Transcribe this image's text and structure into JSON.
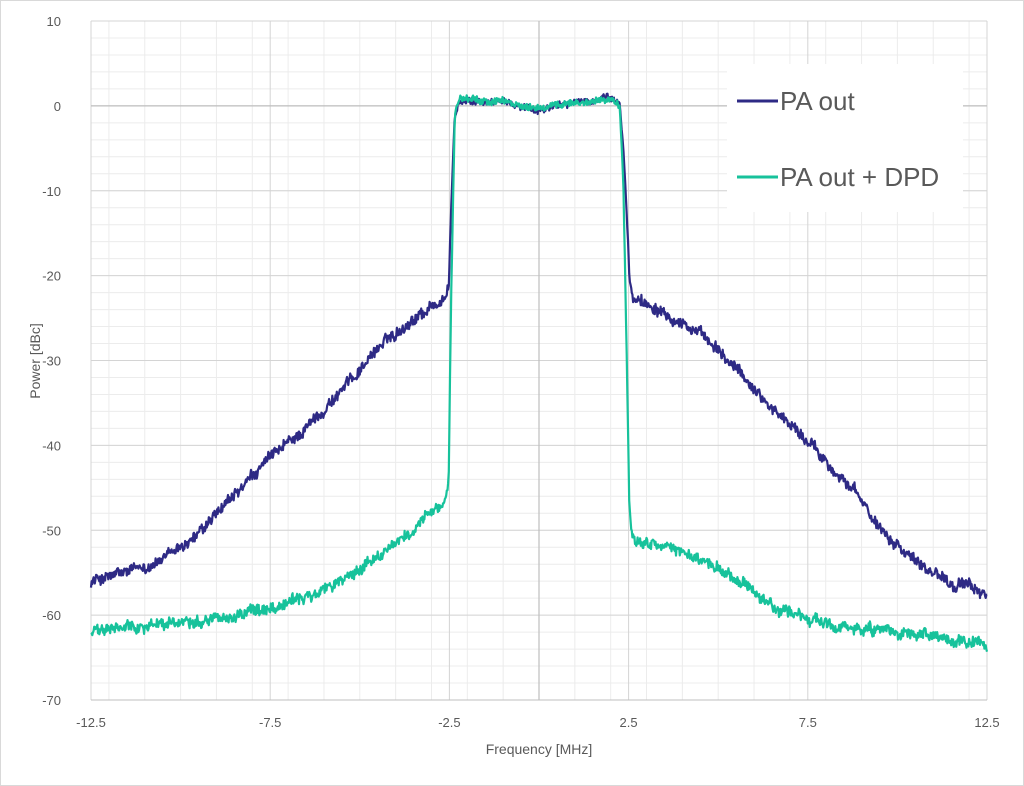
{
  "chart_data": {
    "type": "line",
    "title": "",
    "xlabel": "Frequency [MHz]",
    "ylabel": "Power [dBc]",
    "xlim": [
      -12.5,
      12.5
    ],
    "ylim": [
      -70,
      10
    ],
    "x_ticks": [
      -12.5,
      -7.5,
      -2.5,
      2.5,
      7.5,
      12.5
    ],
    "x_tick_labels": [
      "-12.5",
      "-7.5",
      "-2.5",
      "2.5",
      "7.5",
      "12.5"
    ],
    "y_ticks": [
      10,
      0,
      -10,
      -20,
      -30,
      -40,
      -50,
      -60,
      -70
    ],
    "y_tick_labels": [
      "10",
      "0",
      "-10",
      "-20",
      "-30",
      "-40",
      "-50",
      "-60",
      "-70"
    ],
    "x_minor_step": 1,
    "y_minor_step": 2,
    "grid": true,
    "legend_position": "top-right",
    "series": [
      {
        "name": "PA out",
        "color": "#2e2a85",
        "x": [
          -12.5,
          -11.5,
          -10.5,
          -9.5,
          -8.5,
          -7.5,
          -6.5,
          -5.5,
          -4.5,
          -3.5,
          -2.6,
          -2.52,
          -2.45,
          -2.35,
          -2.2,
          -1.5,
          -1.0,
          -0.5,
          0.0,
          0.5,
          1.0,
          1.5,
          1.8,
          2.1,
          2.25,
          2.35,
          2.45,
          2.52,
          2.6,
          3.5,
          4.5,
          5.5,
          6.5,
          7.5,
          8.5,
          9.5,
          10.5,
          11.5,
          12.5
        ],
        "y": [
          -56,
          -55,
          -53.5,
          -50.5,
          -46,
          -41.5,
          -38,
          -33.5,
          -28.5,
          -25,
          -22.5,
          -21.5,
          -12,
          -1,
          0.5,
          0.5,
          0.5,
          0,
          -0.5,
          0,
          0.5,
          0.5,
          1,
          0.7,
          0.2,
          -5,
          -13,
          -20,
          -22.5,
          -24,
          -27,
          -31,
          -35.5,
          -39.5,
          -44,
          -49.5,
          -53.5,
          -56,
          -57.5
        ]
      },
      {
        "name": "PA out + DPD",
        "color": "#17c29b",
        "x": [
          -12.5,
          -11.5,
          -10.5,
          -9.5,
          -8.5,
          -7.5,
          -6.5,
          -5.5,
          -4.5,
          -3.5,
          -2.6,
          -2.52,
          -2.45,
          -2.35,
          -2.2,
          -1.5,
          -1.0,
          -0.5,
          0.0,
          0.5,
          1.0,
          1.5,
          1.8,
          2.1,
          2.25,
          2.35,
          2.45,
          2.52,
          2.6,
          3.5,
          4.5,
          5.5,
          6.5,
          7.5,
          8.5,
          9.5,
          10.5,
          11.5,
          12.5
        ],
        "y": [
          -62,
          -61.5,
          -61,
          -60.5,
          -60,
          -59,
          -58,
          -56,
          -53,
          -50,
          -46.5,
          -44,
          -22,
          -1,
          0.8,
          0.5,
          0.5,
          0,
          -0.3,
          0,
          0.5,
          0.5,
          0.7,
          0.6,
          0.1,
          -8,
          -30,
          -47,
          -51,
          -52,
          -53.5,
          -56,
          -59,
          -60.5,
          -61.5,
          -62,
          -62.5,
          -63,
          -63.5
        ]
      }
    ]
  }
}
